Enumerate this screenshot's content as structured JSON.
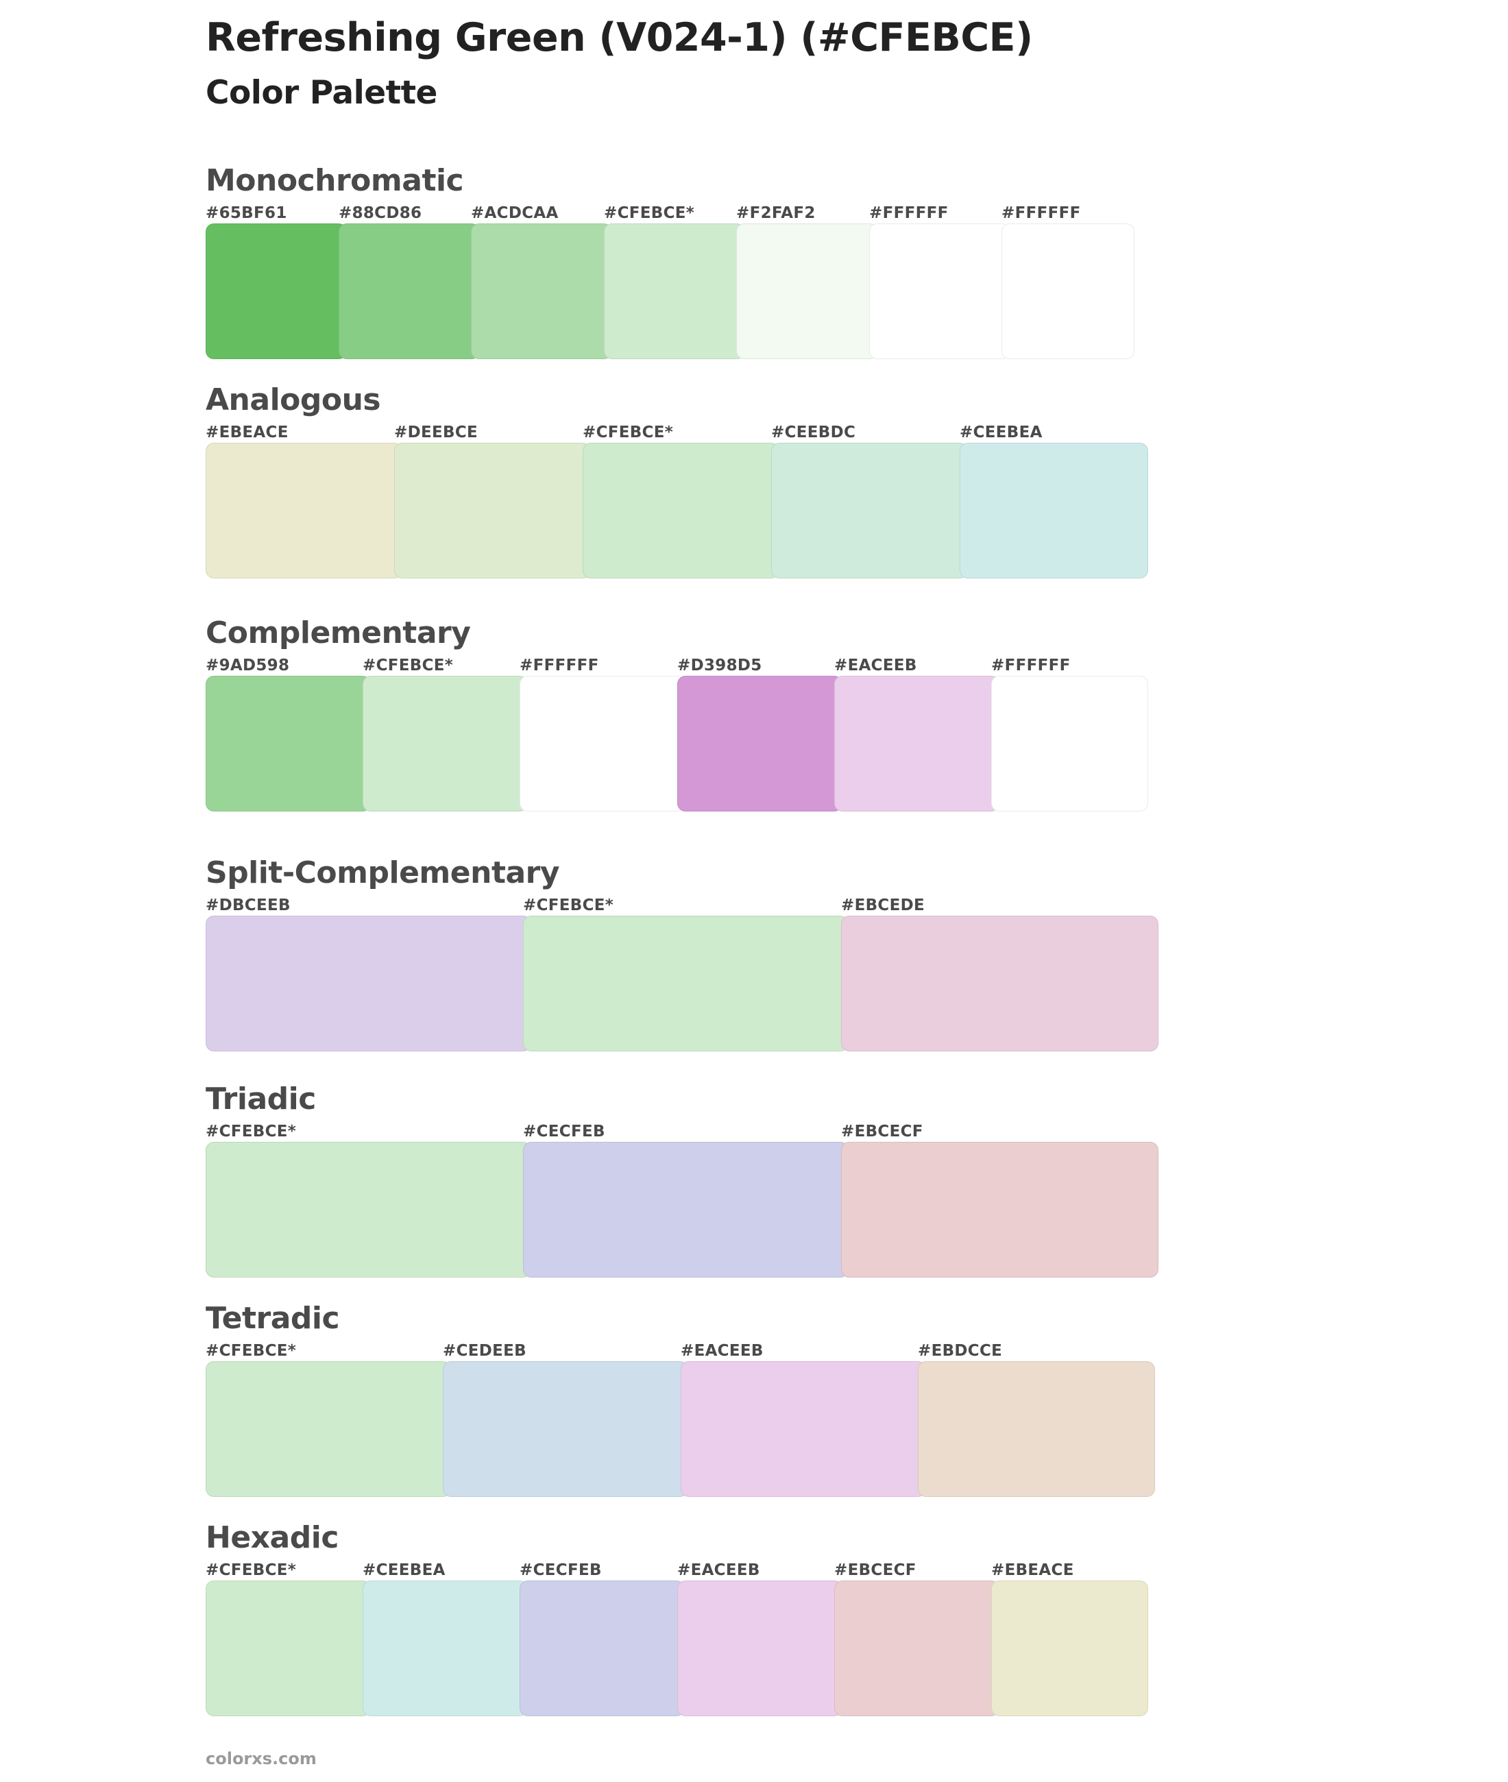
{
  "title": "Refreshing Green (V024-1) (#CFEBCE)",
  "subtitle": "Color Palette",
  "footer": "colorxs.com",
  "sections": [
    {
      "name": "Monochromatic",
      "swatches": [
        {
          "code": "#65BF61",
          "color": "#65BF61"
        },
        {
          "code": "#88CD86",
          "color": "#88CD86"
        },
        {
          "code": "#ACDCAA",
          "color": "#ACDCAA"
        },
        {
          "code": "#CFEBCE*",
          "color": "#CFEBCE"
        },
        {
          "code": "#F2FAF2",
          "color": "#F2FAF2"
        },
        {
          "code": "#FFFFFF",
          "color": "#FFFFFF"
        },
        {
          "code": "#FFFFFF",
          "color": "#FFFFFF"
        }
      ]
    },
    {
      "name": "Analogous",
      "swatches": [
        {
          "code": "#EBEACE",
          "color": "#EBEACE"
        },
        {
          "code": "#DEEBCE",
          "color": "#DEEBCE"
        },
        {
          "code": "#CFEBCE*",
          "color": "#CFEBCE"
        },
        {
          "code": "#CEEBDC",
          "color": "#CEEBDC"
        },
        {
          "code": "#CEEBEA",
          "color": "#CEEBEA"
        }
      ]
    },
    {
      "name": "Complementary",
      "swatches": [
        {
          "code": "#9AD598",
          "color": "#9AD598"
        },
        {
          "code": "#CFEBCE*",
          "color": "#CFEBCE"
        },
        {
          "code": "#FFFFFF",
          "color": "#FFFFFF"
        },
        {
          "code": "#D398D5",
          "color": "#D398D5"
        },
        {
          "code": "#EACEEB",
          "color": "#EACEEB"
        },
        {
          "code": "#FFFFFF",
          "color": "#FFFFFF"
        }
      ]
    },
    {
      "name": "Split-Complementary",
      "swatches": [
        {
          "code": "#DBCEEB",
          "color": "#DBCEEB"
        },
        {
          "code": "#CFEBCE*",
          "color": "#CFEBCE"
        },
        {
          "code": "#EBCEDE",
          "color": "#EBCEDE"
        }
      ]
    },
    {
      "name": "Triadic",
      "swatches": [
        {
          "code": "#CFEBCE*",
          "color": "#CFEBCE"
        },
        {
          "code": "#CECFEB",
          "color": "#CECFEB"
        },
        {
          "code": "#EBCECF",
          "color": "#EBCECF"
        }
      ]
    },
    {
      "name": "Tetradic",
      "swatches": [
        {
          "code": "#CFEBCE*",
          "color": "#CFEBCE"
        },
        {
          "code": "#CEDEEB",
          "color": "#CEDEEB"
        },
        {
          "code": "#EACEEB",
          "color": "#EACEEB"
        },
        {
          "code": "#EBDCCE",
          "color": "#EBDCCE"
        }
      ]
    },
    {
      "name": "Hexadic",
      "swatches": [
        {
          "code": "#CFEBCE*",
          "color": "#CFEBCE"
        },
        {
          "code": "#CEEBEA",
          "color": "#CEEBEA"
        },
        {
          "code": "#CECFEB",
          "color": "#CECFEB"
        },
        {
          "code": "#EACEEB",
          "color": "#EACEEB"
        },
        {
          "code": "#EBCECF",
          "color": "#EBCECF"
        },
        {
          "code": "#EBEACE",
          "color": "#EBEACE"
        }
      ]
    }
  ]
}
